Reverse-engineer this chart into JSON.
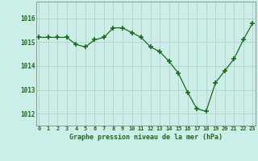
{
  "x": [
    0,
    1,
    2,
    3,
    4,
    5,
    6,
    7,
    8,
    9,
    10,
    11,
    12,
    13,
    14,
    15,
    16,
    17,
    18,
    19,
    20,
    21,
    22,
    23
  ],
  "y": [
    1015.2,
    1015.2,
    1015.2,
    1015.2,
    1014.9,
    1014.8,
    1015.1,
    1015.2,
    1015.6,
    1015.6,
    1015.4,
    1015.2,
    1014.8,
    1014.6,
    1014.2,
    1013.7,
    1012.9,
    1012.2,
    1012.1,
    1013.3,
    1013.8,
    1014.3,
    1015.1,
    1015.8
  ],
  "line_color": "#1a6b1a",
  "marker": "+",
  "marker_size": 4,
  "bg_color": "#cceee8",
  "grid_color": "#bbcccc",
  "xlabel": "Graphe pression niveau de la mer (hPa)",
  "xlabel_color": "#1a6b1a",
  "tick_color": "#1a6b1a",
  "axis_color": "#888888",
  "ylim_min": 1011.5,
  "ylim_max": 1016.7,
  "yticks": [
    1012,
    1013,
    1014,
    1015,
    1016
  ],
  "xticks": [
    0,
    1,
    2,
    3,
    4,
    5,
    6,
    7,
    8,
    9,
    10,
    11,
    12,
    13,
    14,
    15,
    16,
    17,
    18,
    19,
    20,
    21,
    22,
    23
  ]
}
